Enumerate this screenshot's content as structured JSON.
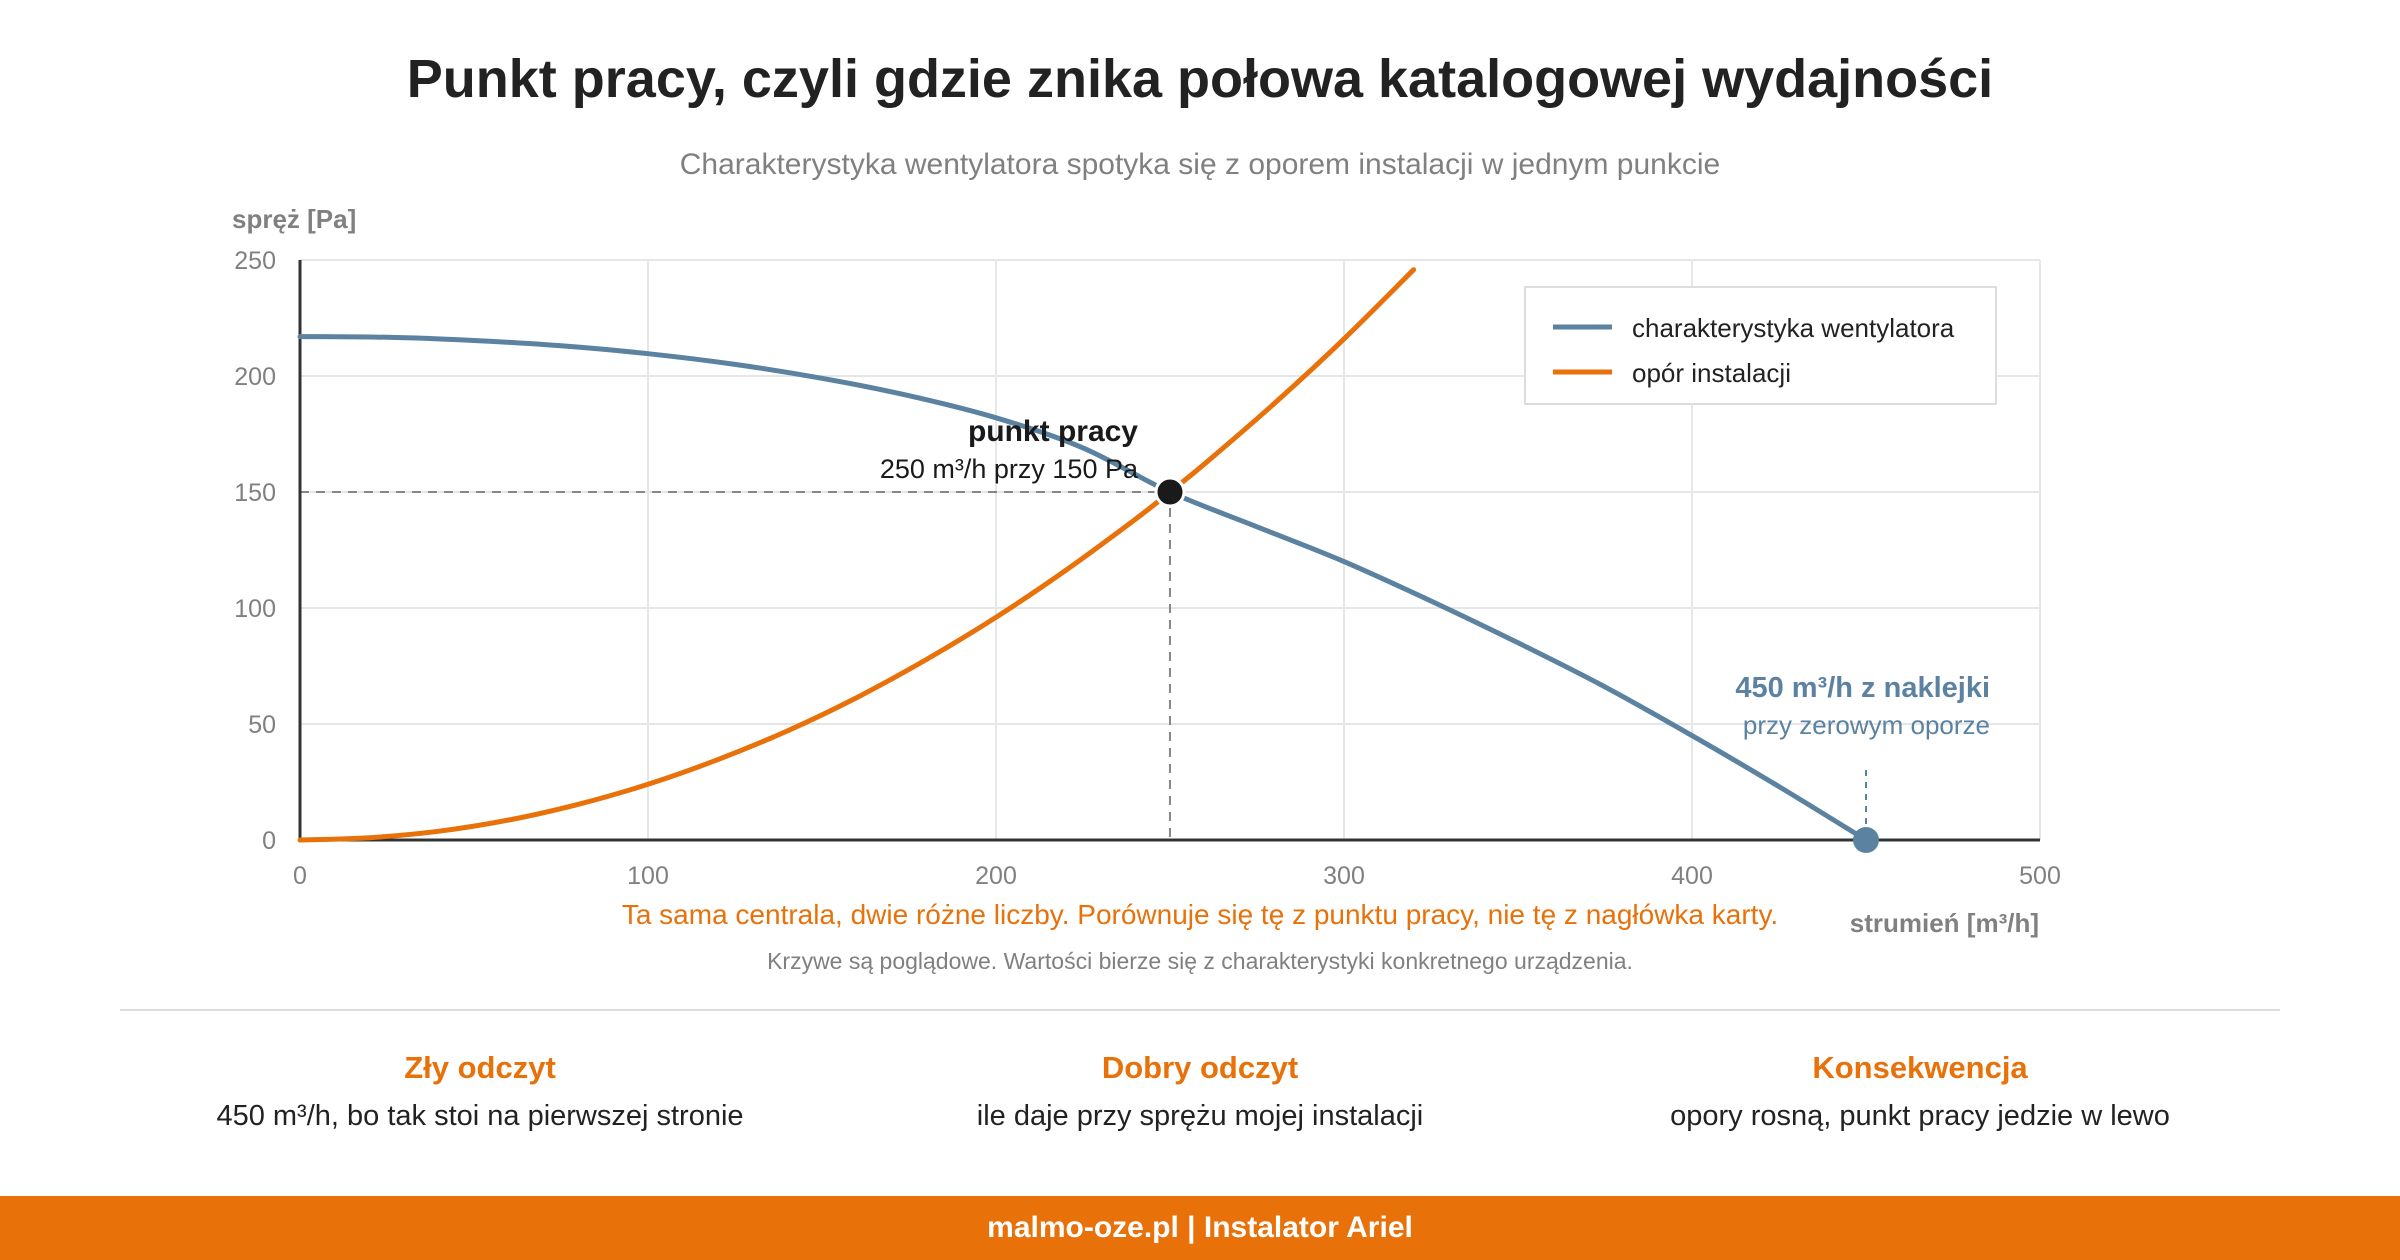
{
  "header": {
    "title": "Punkt pracy, czyli gdzie znika połowa katalogowej wydajności",
    "subtitle": "Charakterystyka wentylatora spotyka się z oporem instalacji w jednym punkcie"
  },
  "chart_data": {
    "type": "line",
    "ylabel": "spręż [Pa]",
    "xlabel": "strumień [m³/h]",
    "xlim": [
      0,
      500
    ],
    "ylim": [
      0,
      250
    ],
    "x_ticks": [
      0,
      100,
      200,
      300,
      400,
      500
    ],
    "y_ticks": [
      0,
      50,
      100,
      150,
      200,
      250
    ],
    "grid": true,
    "legend_position": "top-right",
    "series": [
      {
        "name": "charakterystyka wentylatora",
        "color": "#5b82a0",
        "x": [
          0,
          25,
          50,
          75,
          100,
          125,
          150,
          175,
          200,
          225,
          250,
          275,
          300,
          325,
          350,
          375,
          400,
          425,
          450
        ],
        "y": [
          217,
          216.7,
          215.3,
          213,
          209.6,
          205,
          199,
          191.5,
          182,
          169,
          150,
          135,
          120,
          103,
          85,
          66,
          45,
          23,
          0
        ]
      },
      {
        "name": "opór instalacji",
        "color": "#e8710a",
        "x": [
          0,
          20,
          40,
          60,
          80,
          100,
          120,
          140,
          160,
          180,
          200,
          220,
          240,
          250,
          260,
          280,
          300,
          320
        ],
        "y": [
          0,
          1,
          3.8,
          8.6,
          15.4,
          24,
          34.6,
          47,
          61.4,
          77.8,
          96,
          116.2,
          138.2,
          150,
          162.2,
          188.2,
          216,
          245.8
        ]
      }
    ],
    "annotations": {
      "operating_point": {
        "x": 250,
        "y": 150,
        "label": "punkt pracy",
        "sublabel": "250 m³/h przy 150 Pa",
        "color": "#1a1a1a"
      },
      "catalog_point": {
        "x": 450,
        "y": 0,
        "label": "450 m³/h z naklejki",
        "sublabel": "przy zerowym oporze",
        "color": "#5b82a0"
      }
    },
    "note": "Ta sama centrala, dwie różne liczby. Porównuje się tę z punktu pracy, nie tę z nagłówka karty.",
    "footnote": "Krzywe są poglądowe. Wartości bierze się z charakterystyki konkretnego urządzenia."
  },
  "columns": [
    {
      "heading": "Zły odczyt",
      "text": "450 m³/h, bo tak stoi na pierwszej stronie"
    },
    {
      "heading": "Dobry odczyt",
      "text": "ile daje przy sprężu mojej instalacji"
    },
    {
      "heading": "Konsekwencja",
      "text": "opory rosną, punkt pracy jedzie w lewo"
    }
  ],
  "footer": {
    "text": "malmo-oze.pl | Instalator Ariel"
  }
}
